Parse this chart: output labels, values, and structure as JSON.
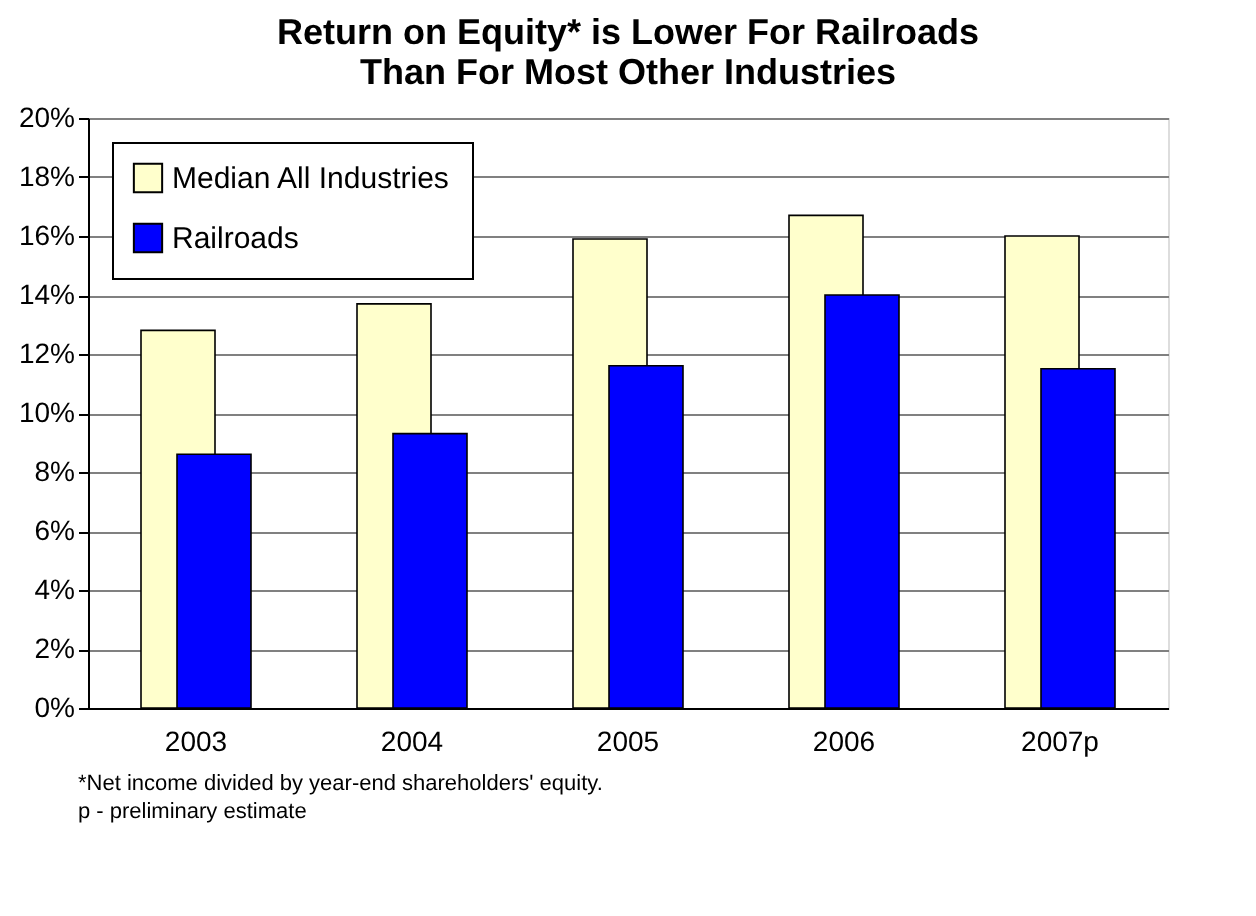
{
  "chart_data": {
    "type": "bar",
    "title": "Return on Equity* is Lower For Railroads\nThan For Most Other Industries",
    "categories": [
      "2003",
      "2004",
      "2005",
      "2006",
      "2007p"
    ],
    "series": [
      {
        "name": "Median All Industries",
        "color": "#ffffcc",
        "values": [
          12.8,
          13.7,
          15.9,
          16.7,
          16.0
        ]
      },
      {
        "name": "Railroads",
        "color": "#0000ff",
        "values": [
          8.6,
          9.3,
          11.6,
          14.0,
          11.5
        ]
      }
    ],
    "ylim": [
      0,
      20
    ],
    "yticks": [
      {
        "value": 0,
        "label": "0%"
      },
      {
        "value": 2,
        "label": "2%"
      },
      {
        "value": 4,
        "label": "4%"
      },
      {
        "value": 6,
        "label": "6%"
      },
      {
        "value": 8,
        "label": "8%"
      },
      {
        "value": 10,
        "label": "10%"
      },
      {
        "value": 12,
        "label": "12%"
      },
      {
        "value": 14,
        "label": "14%"
      },
      {
        "value": 16,
        "label": "16%"
      },
      {
        "value": 18,
        "label": "18%"
      },
      {
        "value": 20,
        "label": "20%"
      }
    ],
    "grid": "y",
    "legend": "top left",
    "annotations": [
      "*Net income divided by year-end shareholders' equity.",
      "p - preliminary estimate"
    ]
  }
}
